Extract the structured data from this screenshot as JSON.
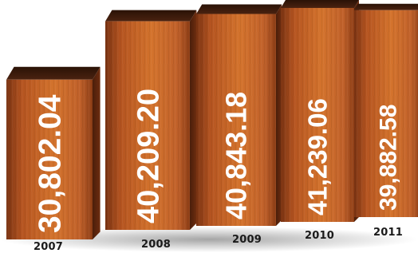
{
  "chart_data": {
    "type": "bar",
    "categories": [
      "2007",
      "2008",
      "2009",
      "2010",
      "2011"
    ],
    "values": [
      30802.04,
      40209.2,
      40843.18,
      41239.06,
      39882.58
    ],
    "value_labels": [
      "30,802.04",
      "40,209.20",
      "40,843.18",
      "41,239.06",
      "39,882.58"
    ],
    "title": "",
    "xlabel": "",
    "ylabel": "",
    "ylim": [
      0,
      45000
    ],
    "grid": false,
    "legend": "none"
  },
  "colors": {
    "wood_light": "#d4732c",
    "wood_mid": "#b55420",
    "wood_dark": "#7a3312",
    "top_face": "#3a1a0a",
    "label_text": "#ffffff",
    "year_text": "#1a1a1a"
  }
}
